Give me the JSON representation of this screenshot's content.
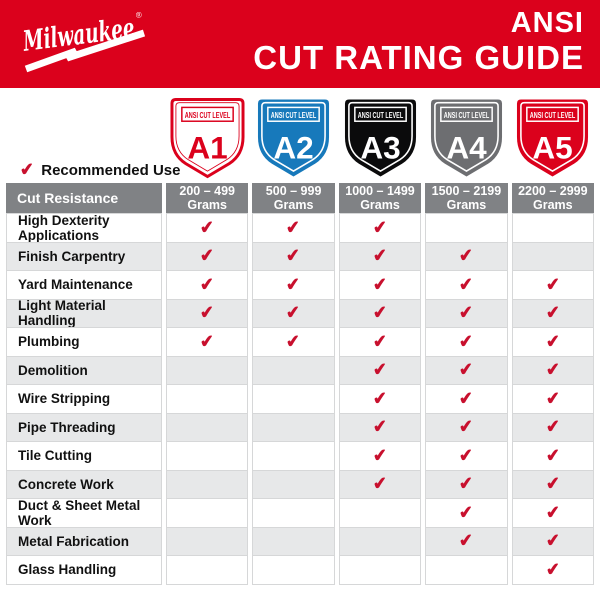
{
  "banner": {
    "brand": "Milwaukee",
    "registered_mark": "®",
    "title_line1": "ANSI",
    "title_line2": "CUT RATING GUIDE"
  },
  "shields": [
    {
      "level": "A1",
      "label": "ANSI CUT LEVEL",
      "fill": "#FFFFFF",
      "accent": "#DB011C",
      "label_fill": "#FFFFFF",
      "outer_stroke": "#DB011C",
      "outer_stroke_width": 3,
      "inner_stroke_width": 1
    },
    {
      "level": "A2",
      "label": "ANSI CUT LEVEL",
      "fill": "#1779BB",
      "accent": "#FFFFFF",
      "label_fill": "none",
      "outer_stroke": "none",
      "outer_stroke_width": 0,
      "inner_stroke_width": 1.8
    },
    {
      "level": "A3",
      "label": "ANSI CUT LEVEL",
      "fill": "#0B0B0C",
      "accent": "#FFFFFF",
      "label_fill": "none",
      "outer_stroke": "none",
      "outer_stroke_width": 0,
      "inner_stroke_width": 1.8
    },
    {
      "level": "A4",
      "label": "ANSI CUT LEVEL",
      "fill": "#6D6E71",
      "accent": "#FFFFFF",
      "label_fill": "none",
      "outer_stroke": "none",
      "outer_stroke_width": 0,
      "inner_stroke_width": 1.8
    },
    {
      "level": "A5",
      "label": "ANSI CUT LEVEL",
      "fill": "#DB011C",
      "accent": "#FFFFFF",
      "label_fill": "none",
      "outer_stroke": "none",
      "outer_stroke_width": 0,
      "inner_stroke_width": 1.8
    }
  ],
  "recommended_use": {
    "label": "Recommended Use",
    "check_glyph": "✔"
  },
  "chart_data": {
    "type": "table",
    "title": "ANSI CUT RATING GUIDE",
    "row_header": "Cut Resistance",
    "check_glyph": "✔",
    "columns": [
      {
        "level": "A1",
        "range": "200 – 499",
        "unit": "Grams"
      },
      {
        "level": "A2",
        "range": "500 – 999",
        "unit": "Grams"
      },
      {
        "level": "A3",
        "range": "1000 – 1499",
        "unit": "Grams"
      },
      {
        "level": "A4",
        "range": "1500 – 2199",
        "unit": "Grams"
      },
      {
        "level": "A5",
        "range": "2200 – 2999",
        "unit": "Grams"
      }
    ],
    "rows": [
      {
        "label": "High Dexterity Applications",
        "checks": [
          true,
          true,
          true,
          false,
          false
        ]
      },
      {
        "label": "Finish Carpentry",
        "checks": [
          true,
          true,
          true,
          true,
          false
        ]
      },
      {
        "label": "Yard Maintenance",
        "checks": [
          true,
          true,
          true,
          true,
          true
        ]
      },
      {
        "label": "Light Material Handling",
        "checks": [
          true,
          true,
          true,
          true,
          true
        ]
      },
      {
        "label": "Plumbing",
        "checks": [
          true,
          true,
          true,
          true,
          true
        ]
      },
      {
        "label": "Demolition",
        "checks": [
          false,
          false,
          true,
          true,
          true
        ]
      },
      {
        "label": "Wire Stripping",
        "checks": [
          false,
          false,
          true,
          true,
          true
        ]
      },
      {
        "label": "Pipe Threading",
        "checks": [
          false,
          false,
          true,
          true,
          true
        ]
      },
      {
        "label": "Tile Cutting",
        "checks": [
          false,
          false,
          true,
          true,
          true
        ]
      },
      {
        "label": "Concrete Work",
        "checks": [
          false,
          false,
          true,
          true,
          true
        ]
      },
      {
        "label": "Duct & Sheet Metal Work",
        "checks": [
          false,
          false,
          false,
          true,
          true
        ]
      },
      {
        "label": "Metal Fabrication",
        "checks": [
          false,
          false,
          false,
          true,
          true
        ]
      },
      {
        "label": "Glass Handling",
        "checks": [
          false,
          false,
          false,
          false,
          true
        ]
      }
    ]
  },
  "colors": {
    "brand_red": "#DB011C",
    "header_bg": "#808285",
    "row_alt_bg": "#E7E8E9",
    "border": "#D6D7D8",
    "check": "#C8102E"
  }
}
